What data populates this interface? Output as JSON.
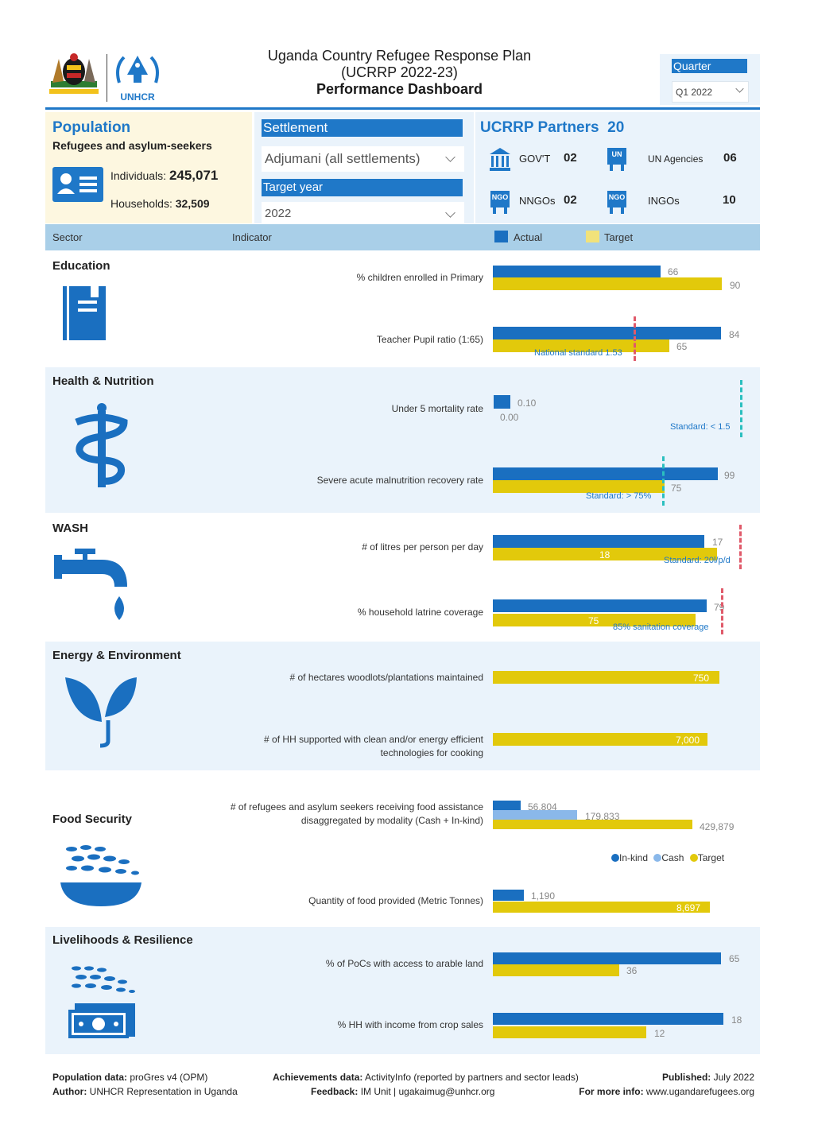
{
  "header": {
    "title_line1": "Uganda Country Refugee Response Plan",
    "title_line2": "(UCRRP 2022-23)",
    "title_line3": "Performance Dashboard",
    "logo_text": "UNHCR",
    "quarter_label": "Quarter",
    "quarter_value": "Q1 2022"
  },
  "population": {
    "heading": "Population",
    "subheading": "Refugees and asylum-seekers",
    "individuals_label": "Individuals:",
    "individuals_value": "245,071",
    "households_label": "Households:",
    "households_value": "32,509"
  },
  "filters": {
    "settlement_label": "Settlement",
    "settlement_value": "Adjumani (all settlements)",
    "target_year_label": "Target year",
    "target_year_value": "2022"
  },
  "partners": {
    "heading": "UCRRP Partners",
    "total": "20",
    "items": [
      {
        "icon": "government-building-icon",
        "badge": "",
        "label": "GOV'T",
        "value": "02"
      },
      {
        "icon": "un-agencies-icon",
        "badge": "UN",
        "label": "UN Agencies",
        "value": "06"
      },
      {
        "icon": "nngo-icon",
        "badge": "NGO",
        "label": "NNGOs",
        "value": "02"
      },
      {
        "icon": "ingo-icon",
        "badge": "NGO",
        "label": "INGOs",
        "value": "10"
      }
    ]
  },
  "table_header": {
    "sector": "Sector",
    "indicator": "Indicator",
    "actual": "Actual",
    "target": "Target"
  },
  "colors": {
    "actual": "#1a6fc0",
    "target": "#e2c90b",
    "cash": "#8ab8ea",
    "accent": "#1f78c8"
  },
  "sectors": {
    "education": {
      "title": "Education",
      "indicators": [
        {
          "label": "% children enrolled in Primary",
          "actual": "66",
          "target": "90"
        },
        {
          "label": "Teacher Pupil ratio (1:65)",
          "actual": "84",
          "target": "65",
          "standard": "National standard 1:53"
        }
      ]
    },
    "health": {
      "title": "Health & Nutrition",
      "indicators": [
        {
          "label": "Under 5 mortality rate",
          "actual": "0.10",
          "target": "0.00",
          "standard": "Standard: < 1.5"
        },
        {
          "label": "Severe acute malnutrition recovery rate",
          "actual": "99",
          "target": "75",
          "standard": "Standard: > 75%"
        }
      ]
    },
    "wash": {
      "title": "WASH",
      "indicators": [
        {
          "label": "# of litres per person per day",
          "actual": "17",
          "target": "18",
          "standard": "Standard: 20l/p/d"
        },
        {
          "label": "% household latrine coverage",
          "actual": "79",
          "target": "75",
          "standard": "85% sanitation coverage"
        }
      ]
    },
    "energy": {
      "title": "Energy & Environment",
      "indicators": [
        {
          "label": "# of hectares woodlots/plantations maintained",
          "target": "750"
        },
        {
          "label_line1": "# of HH supported with clean and/or energy efficient",
          "label_line2": "technologies for cooking",
          "target": "7,000"
        }
      ]
    },
    "food": {
      "title": "Food Security",
      "indicators": [
        {
          "label_line1": "# of refugees and asylum seekers receiving food assistance",
          "label_line2": "disaggregated by modality (Cash + In-kind)",
          "inkind": "56,804",
          "cash": "179,833",
          "target": "429,879"
        },
        {
          "label": "Quantity of food provided (Metric Tonnes)",
          "actual": "1,190",
          "target": "8,697"
        }
      ],
      "legend": [
        "In-kind",
        "Cash",
        "Target"
      ]
    },
    "livelihoods": {
      "title": "Livelihoods & Resilience",
      "indicators": [
        {
          "label": "% of PoCs with access to arable land",
          "actual": "65",
          "target": "36"
        },
        {
          "label": "% HH with income from crop sales",
          "actual": "18",
          "target": "12"
        }
      ]
    }
  },
  "footer": {
    "pop_data_label": "Population data:",
    "pop_data_value": "proGres v4 (OPM)",
    "author_label": "Author:",
    "author_value": "UNHCR Representation in Uganda",
    "ach_label": "Achievements data:",
    "ach_value": "ActivityInfo (reported by partners and sector leads)",
    "feedback_label": "Feedback:",
    "feedback_value": "IM Unit | ugakaimug@unhcr.org",
    "published_label": "Published:",
    "published_value": "July 2022",
    "more_label": "For more info:",
    "more_value": "www.ugandarefugees.org"
  }
}
